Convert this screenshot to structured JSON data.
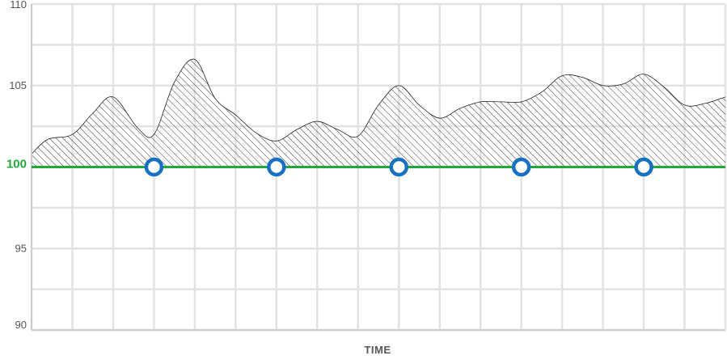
{
  "chart_data": {
    "type": "area",
    "title": "",
    "xlabel": "TIME",
    "ylabel": "",
    "ylim": [
      90,
      110
    ],
    "xlim": [
      0,
      17
    ],
    "yticks": [
      {
        "value": 110,
        "label": "110"
      },
      {
        "value": 105,
        "label": "105"
      },
      {
        "value": 100,
        "label": "100"
      },
      {
        "value": 95,
        "label": "95"
      },
      {
        "value": 90,
        "label": "90"
      }
    ],
    "grid": true,
    "reference_line": {
      "value": 100,
      "label": "100",
      "color": "#22a83a"
    },
    "series": [
      {
        "x": [
          0,
          0.4,
          1,
          1.5,
          2,
          2.6,
          3,
          3.5,
          4,
          4.5,
          5,
          5.5,
          6,
          6.5,
          7,
          7.5,
          8,
          8.5,
          9,
          9.5,
          10,
          10.5,
          11,
          11.5,
          12,
          12.5,
          13,
          13.5,
          14,
          14.5,
          15,
          15.5,
          16,
          16.5,
          17
        ],
        "y": [
          100.8,
          101.7,
          102.0,
          103.3,
          104.3,
          102.4,
          102.0,
          105.2,
          106.6,
          104.2,
          103.2,
          102.1,
          101.6,
          102.3,
          102.8,
          102.3,
          101.9,
          103.8,
          105.0,
          103.8,
          103.0,
          103.6,
          104.0,
          104.0,
          104.0,
          104.6,
          105.6,
          105.5,
          105.0,
          105.1,
          105.7,
          104.9,
          103.8,
          103.9,
          104.3
        ],
        "fill": "diagonal-hatch",
        "stroke": "#222222"
      }
    ],
    "markers": {
      "x": [
        3,
        6,
        9,
        12,
        15
      ],
      "y": [
        100,
        100,
        100,
        100,
        100
      ],
      "color": "#1770c1"
    },
    "colors": {
      "grid": "#e2e2e2",
      "axis": "#cccccc",
      "hatch": "#333333"
    }
  }
}
